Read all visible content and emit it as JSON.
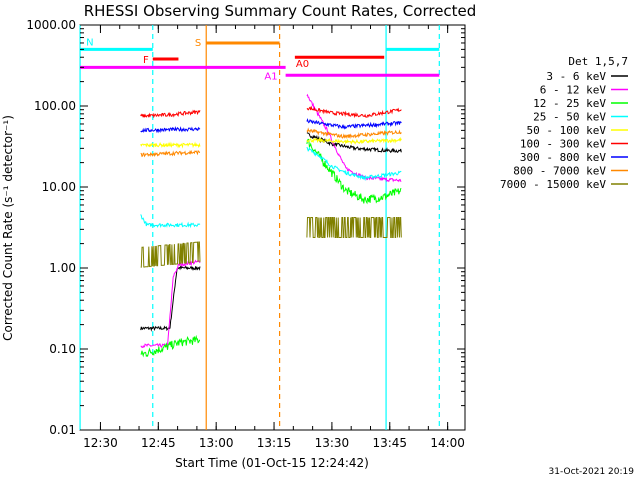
{
  "chart_data": {
    "type": "line",
    "title": "RHESSI Observing Summary Count Rates, Corrected",
    "xlabel": "Start Time (01-Oct-15 12:24:42)",
    "ylabel": "Corrected Count Rate (s⁻¹ detector⁻¹)",
    "yscale": "log",
    "ylim": [
      0.01,
      1000
    ],
    "xlim": [
      "12:24:42",
      "14:04:30"
    ],
    "y_ticks": [
      "0.01",
      "0.10",
      "1.00",
      "10.00",
      "100.00",
      "1000.00"
    ],
    "x_ticks": [
      "12:30",
      "12:45",
      "13:00",
      "13:15",
      "13:30",
      "13:45",
      "14:00"
    ],
    "timestamp": "31-Oct-2021 20:19",
    "legend": {
      "title": "Det 1,5,7",
      "placement": "right"
    },
    "series": [
      {
        "name": "3 - 6 keV",
        "color": "#000000",
        "seg1": [
          [
            12.674,
            0.18
          ],
          [
            12.8,
            0.18
          ],
          [
            12.831,
            1.0
          ],
          [
            12.93,
            1.0
          ]
        ],
        "seg2": [
          [
            13.392,
            45
          ],
          [
            13.5,
            34
          ],
          [
            13.6,
            30
          ],
          [
            13.75,
            28
          ],
          [
            13.8,
            28
          ]
        ]
      },
      {
        "name": "6 - 12 keV",
        "color": "#ff00ff",
        "seg1": [
          [
            12.674,
            0.11
          ],
          [
            12.79,
            0.11
          ],
          [
            12.815,
            0.8
          ],
          [
            12.84,
            1.1
          ],
          [
            12.93,
            1.2
          ]
        ],
        "seg2": [
          [
            13.392,
            140
          ],
          [
            13.42,
            100
          ],
          [
            13.48,
            50
          ],
          [
            13.53,
            25
          ],
          [
            13.56,
            17
          ],
          [
            13.64,
            13
          ],
          [
            13.8,
            12
          ]
        ]
      },
      {
        "name": "12 - 25 keV",
        "color": "#00ff00",
        "seg1": [
          [
            12.674,
            0.085
          ],
          [
            12.76,
            0.1
          ],
          [
            12.84,
            0.12
          ],
          [
            12.93,
            0.13
          ]
        ],
        "seg2": [
          [
            13.392,
            38
          ],
          [
            13.44,
            25
          ],
          [
            13.5,
            15
          ],
          [
            13.56,
            9
          ],
          [
            13.64,
            7
          ],
          [
            13.72,
            7.5
          ],
          [
            13.8,
            9
          ]
        ]
      },
      {
        "name": "25 - 50 keV",
        "color": "#00ffff",
        "seg1": [
          [
            12.674,
            4.5
          ],
          [
            12.7,
            3.4
          ],
          [
            12.93,
            3.4
          ]
        ],
        "seg2": [
          [
            13.392,
            30
          ],
          [
            13.44,
            25
          ],
          [
            13.5,
            18
          ],
          [
            13.56,
            15
          ],
          [
            13.64,
            13
          ],
          [
            13.8,
            15
          ]
        ]
      },
      {
        "name": "50 - 100 keV",
        "color": "#ffff00",
        "seg1": [
          [
            12.674,
            33
          ],
          [
            12.93,
            33
          ]
        ],
        "seg2": [
          [
            13.392,
            38
          ],
          [
            13.6,
            36
          ],
          [
            13.8,
            38
          ]
        ]
      },
      {
        "name": "100 - 300 keV",
        "color": "#ff0000",
        "seg1": [
          [
            12.674,
            75
          ],
          [
            12.8,
            78
          ],
          [
            12.93,
            85
          ]
        ],
        "seg2": [
          [
            13.392,
            95
          ],
          [
            13.5,
            82
          ],
          [
            13.65,
            76
          ],
          [
            13.8,
            90
          ]
        ]
      },
      {
        "name": "300 - 800 keV",
        "color": "#0000ff",
        "seg1": [
          [
            12.674,
            50
          ],
          [
            12.93,
            52
          ]
        ],
        "seg2": [
          [
            13.392,
            65
          ],
          [
            13.55,
            55
          ],
          [
            13.8,
            62
          ]
        ]
      },
      {
        "name": "800 - 7000 keV",
        "color": "#ff8800",
        "seg1": [
          [
            12.674,
            25
          ],
          [
            12.93,
            27
          ]
        ],
        "seg2": [
          [
            13.392,
            50
          ],
          [
            13.55,
            42
          ],
          [
            13.8,
            48
          ]
        ]
      },
      {
        "name": "7000 - 15000 keV",
        "color": "#808000",
        "seg1": [
          [
            12.674,
            1.2
          ],
          [
            12.93,
            1.4
          ]
        ],
        "seg2": [
          [
            13.392,
            2.8
          ],
          [
            13.8,
            2.8
          ]
        ]
      }
    ],
    "flags": [
      {
        "label": "N",
        "color": "#00ffff",
        "level": 500,
        "spans": [
          [
            12.412,
            12.726
          ],
          [
            13.734,
            13.964
          ]
        ]
      },
      {
        "label": "F",
        "color": "#ff0000",
        "level": 380,
        "spans": [
          [
            12.726,
            12.837
          ]
        ]
      },
      {
        "label": "S",
        "color": "#ff8800",
        "level": 600,
        "spans": [
          [
            12.957,
            13.274
          ]
        ]
      },
      {
        "label": "A0",
        "color": "#ff0000",
        "level": 400,
        "spans": [
          [
            13.34,
            13.726
          ]
        ]
      },
      {
        "label": "A1",
        "color": "#ff00ff",
        "level": 300,
        "spans": [
          [
            12.412,
            13.3
          ]
        ]
      },
      {
        "label": "",
        "color": "#ff00ff",
        "level": 240,
        "spans": [
          [
            13.3,
            13.964
          ]
        ]
      }
    ],
    "vlines": [
      {
        "time": 12.412,
        "color": "#00ffff",
        "dash": false
      },
      {
        "time": 12.726,
        "color": "#00ffff",
        "dash": true
      },
      {
        "time": 12.957,
        "color": "#ff8800",
        "dash": false
      },
      {
        "time": 13.274,
        "color": "#ff8800",
        "dash": true
      },
      {
        "time": 13.734,
        "color": "#00ffff",
        "dash": false
      },
      {
        "time": 13.964,
        "color": "#00ffff",
        "dash": true
      }
    ]
  }
}
